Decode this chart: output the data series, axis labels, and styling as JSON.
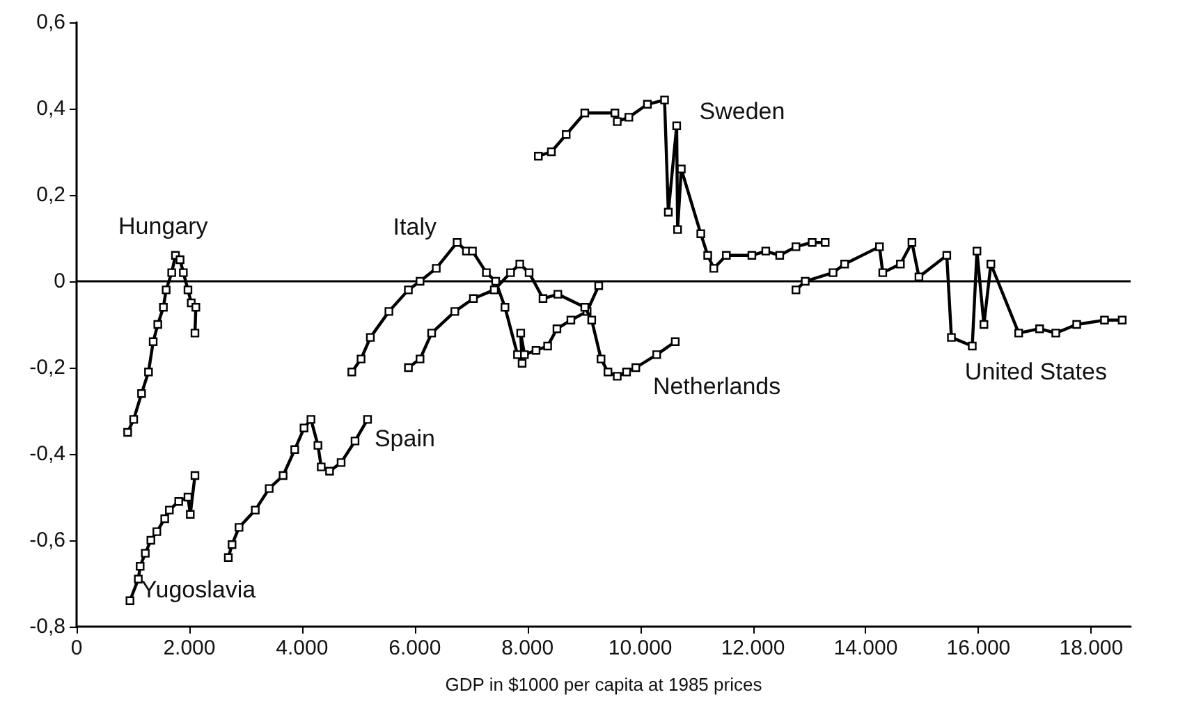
{
  "chart_data": {
    "type": "line",
    "xlabel": "GDP in $1000 per capita at 1985 prices",
    "xlim": [
      0,
      18700
    ],
    "ylim": [
      -0.8,
      0.6
    ],
    "xticks": [
      {
        "value": 0,
        "label": "0"
      },
      {
        "value": 2000,
        "label": "2.000"
      },
      {
        "value": 4000,
        "label": "4.000"
      },
      {
        "value": 6000,
        "label": "6.000"
      },
      {
        "value": 8000,
        "label": "8.000"
      },
      {
        "value": 10000,
        "label": "10.000"
      },
      {
        "value": 12000,
        "label": "12.000"
      },
      {
        "value": 14000,
        "label": "14.000"
      },
      {
        "value": 16000,
        "label": "16.000"
      },
      {
        "value": 18000,
        "label": "18.000"
      }
    ],
    "yticks": [
      {
        "value": -0.8,
        "label": "-0,8"
      },
      {
        "value": -0.6,
        "label": "-0,6"
      },
      {
        "value": -0.4,
        "label": "-0,4"
      },
      {
        "value": -0.2,
        "label": "-0,2"
      },
      0,
      {
        "value": 0.2,
        "label": "0,2"
      },
      {
        "value": 0.4,
        "label": "0,4"
      },
      {
        "value": 0.6,
        "label": "0,6"
      }
    ],
    "grid": false,
    "legend": false,
    "marker": "square",
    "line_style": "solid",
    "ref_lines": [
      {
        "axis": "y",
        "value": 0,
        "color": "#000000"
      }
    ],
    "series": [
      {
        "name": "Hungary",
        "color": "#000000",
        "x": [
          906,
          1013,
          1153,
          1276,
          1359,
          1441,
          1540,
          1589,
          1688,
          1754,
          1836,
          1894,
          1976,
          2034,
          2116,
          2100
        ],
        "values": [
          -0.35,
          -0.32,
          -0.26,
          -0.21,
          -0.14,
          -0.1,
          -0.06,
          -0.02,
          0.02,
          0.06,
          0.05,
          0.02,
          -0.02,
          -0.05,
          -0.06,
          -0.12
        ]
      },
      {
        "name": "Yugoslavia",
        "color": "#000000",
        "x": [
          947,
          1095,
          1128,
          1219,
          1318,
          1424,
          1564,
          1646,
          1812,
          1976,
          2017,
          2100
        ],
        "values": [
          -0.74,
          -0.69,
          -0.66,
          -0.63,
          -0.6,
          -0.58,
          -0.55,
          -0.53,
          -0.51,
          -0.5,
          -0.54,
          -0.45
        ]
      },
      {
        "name": "Spain",
        "color": "#000000",
        "x": [
          2692,
          2758,
          2882,
          3170,
          3417,
          3664,
          3870,
          4035,
          4158,
          4282,
          4340,
          4488,
          4693,
          4940,
          5162
        ],
        "values": [
          -0.64,
          -0.61,
          -0.57,
          -0.53,
          -0.48,
          -0.45,
          -0.39,
          -0.34,
          -0.32,
          -0.38,
          -0.43,
          -0.44,
          -0.42,
          -0.37,
          -0.32
        ]
      },
      {
        "name": "Italy",
        "color": "#000000",
        "x": [
          4883,
          5047,
          5212,
          5541,
          5886,
          6093,
          6381,
          6751,
          6916,
          7023,
          7270,
          7435,
          7600,
          7822,
          7904,
          7879,
          7946,
          8151,
          8357,
          8522,
          8769,
          9057,
          9263
        ],
        "values": [
          -0.21,
          -0.18,
          -0.13,
          -0.07,
          -0.02,
          0.0,
          0.03,
          0.09,
          0.07,
          0.07,
          0.02,
          0.0,
          -0.06,
          -0.17,
          -0.19,
          -0.12,
          -0.17,
          -0.16,
          -0.15,
          -0.11,
          -0.09,
          -0.07,
          -0.01
        ]
      },
      {
        "name": "Netherlands",
        "color": "#000000",
        "x": [
          5887,
          6093,
          6299,
          6710,
          7040,
          7410,
          7699,
          7863,
          8028,
          8275,
          8538,
          9016,
          9139,
          9304,
          9427,
          9592,
          9757,
          9921,
          10292,
          10621
        ],
        "values": [
          -0.2,
          -0.18,
          -0.12,
          -0.07,
          -0.04,
          -0.02,
          0.02,
          0.04,
          0.02,
          -0.04,
          -0.03,
          -0.06,
          -0.09,
          -0.18,
          -0.21,
          -0.22,
          -0.21,
          -0.2,
          -0.17,
          -0.14
        ]
      },
      {
        "name": "Sweden",
        "color": "#000000",
        "x": [
          8192,
          8423,
          8686,
          9016,
          9550,
          9592,
          9798,
          10127,
          10431,
          10498,
          10646,
          10662,
          10728,
          11074,
          11197,
          11305,
          11527,
          11980,
          12227,
          12474,
          12762,
          13050,
          13281
        ],
        "values": [
          0.29,
          0.3,
          0.34,
          0.39,
          0.39,
          0.37,
          0.38,
          0.41,
          0.42,
          0.16,
          0.36,
          0.12,
          0.26,
          0.11,
          0.06,
          0.03,
          0.06,
          0.06,
          0.07,
          0.06,
          0.08,
          0.09,
          0.09
        ]
      },
      {
        "name": "United States",
        "color": "#000000",
        "x": [
          12762,
          12927,
          13420,
          13626,
          14244,
          14302,
          14615,
          14820,
          14944,
          15438,
          15520,
          15890,
          15973,
          16097,
          16220,
          16714,
          17085,
          17372,
          17743,
          18236,
          18550
        ],
        "values": [
          -0.02,
          0.0,
          0.02,
          0.04,
          0.08,
          0.02,
          0.04,
          0.09,
          0.01,
          0.06,
          -0.13,
          -0.15,
          0.07,
          -0.1,
          0.04,
          -0.12,
          -0.11,
          -0.12,
          -0.1,
          -0.09,
          -0.09
        ]
      }
    ]
  }
}
